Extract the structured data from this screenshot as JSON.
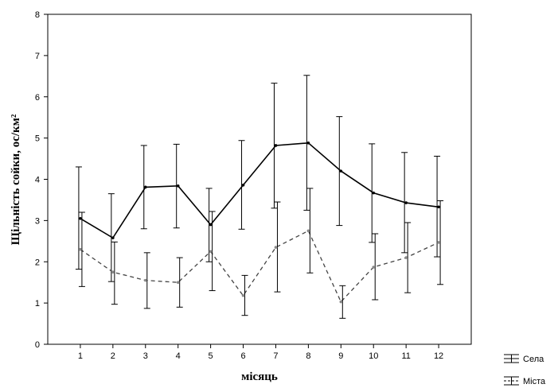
{
  "chart_data": {
    "type": "line",
    "title": "",
    "xlabel": "місяць",
    "ylabel": "Щільність сойки, ос/км²",
    "x": [
      1,
      2,
      3,
      4,
      5,
      6,
      7,
      8,
      9,
      10,
      11,
      12
    ],
    "xlim": [
      0,
      13
    ],
    "ylim": [
      0,
      8
    ],
    "yticks": [
      0,
      1,
      2,
      3,
      4,
      5,
      6,
      7,
      8
    ],
    "grid": false,
    "legend_position": "bottom-right-outside",
    "series": [
      {
        "name": "Села",
        "style": "solid",
        "color": "#000000",
        "values": [
          3.05,
          2.58,
          3.81,
          3.84,
          2.9,
          3.86,
          4.82,
          4.88,
          4.2,
          3.67,
          3.43,
          3.33
        ],
        "lower": [
          1.82,
          1.52,
          2.8,
          2.82,
          2.0,
          2.79,
          3.3,
          3.25,
          2.88,
          2.47,
          2.22,
          2.12
        ],
        "upper": [
          4.3,
          3.65,
          4.82,
          4.85,
          3.78,
          4.94,
          6.33,
          6.52,
          5.52,
          4.86,
          4.65,
          4.56
        ]
      },
      {
        "name": "Міста",
        "style": "dashed",
        "color": "#444444",
        "values": [
          2.3,
          1.75,
          1.55,
          1.5,
          2.25,
          1.18,
          2.35,
          2.75,
          1.03,
          1.87,
          2.1,
          2.47
        ],
        "lower": [
          1.4,
          0.97,
          0.87,
          0.9,
          1.3,
          0.7,
          1.27,
          1.73,
          0.63,
          1.08,
          1.25,
          1.45
        ],
        "upper": [
          3.2,
          2.48,
          2.22,
          2.1,
          3.22,
          1.67,
          3.45,
          3.78,
          1.42,
          2.68,
          2.95,
          3.48
        ]
      }
    ]
  }
}
